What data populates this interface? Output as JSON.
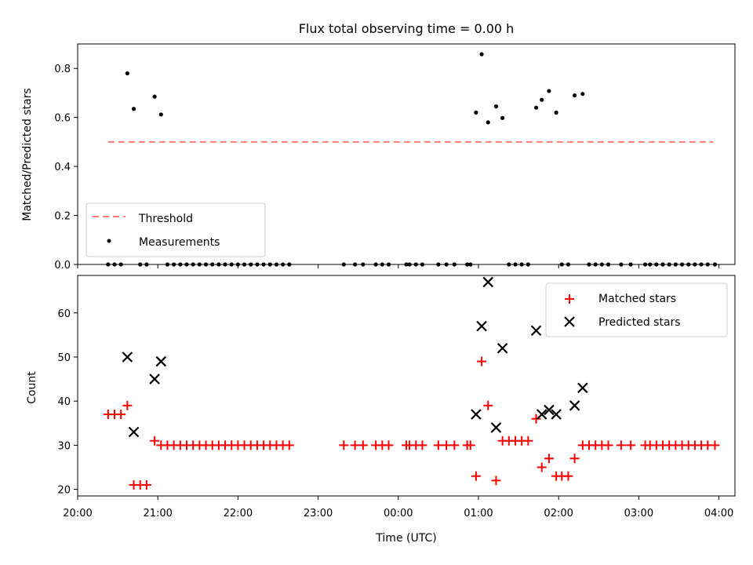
{
  "chart_data": [
    {
      "type": "scatter",
      "title": "Flux total observing time = 0.00 h",
      "xlabel": "",
      "ylabel": "Matched/Predicted stars",
      "xlim_hours": [
        20.0,
        28.2
      ],
      "ylim": [
        0,
        0.9
      ],
      "yticks": [
        0.0,
        0.2,
        0.4,
        0.6,
        0.8
      ],
      "ytick_labels": [
        "0.0",
        "0.2",
        "0.4",
        "0.6",
        "0.8"
      ],
      "threshold": {
        "name": "Threshold",
        "value": 0.5,
        "x_start": 20.38,
        "x_end": 27.93,
        "color": "#ff7b7b"
      },
      "series": [
        {
          "name": "Measurements",
          "color": "#000000",
          "x": [
            20.38,
            20.46,
            20.54,
            20.62,
            20.7,
            20.78,
            20.86,
            20.96,
            21.04,
            21.12,
            21.2,
            21.28,
            21.36,
            21.44,
            21.52,
            21.6,
            21.68,
            21.76,
            21.84,
            21.92,
            22.0,
            22.08,
            22.16,
            22.24,
            22.32,
            22.4,
            22.48,
            22.56,
            22.64,
            23.32,
            23.46,
            23.56,
            23.72,
            23.8,
            23.88,
            24.1,
            24.14,
            24.22,
            24.3,
            24.5,
            24.6,
            24.7,
            24.86,
            24.9,
            24.97,
            25.04,
            25.12,
            25.22,
            25.3,
            25.38,
            25.46,
            25.54,
            25.62,
            25.72,
            25.79,
            25.88,
            25.97,
            26.04,
            26.12,
            26.2,
            26.3,
            26.38,
            26.46,
            26.54,
            26.62,
            26.78,
            26.9,
            27.08,
            27.14,
            27.22,
            27.3,
            27.38,
            27.46,
            27.54,
            27.62,
            27.7,
            27.78,
            27.86,
            27.95
          ],
          "y": [
            0,
            0,
            0,
            0.78,
            0.635,
            0,
            0,
            0.685,
            0.612,
            0,
            0,
            0,
            0,
            0,
            0,
            0,
            0,
            0,
            0,
            0,
            0,
            0,
            0,
            0,
            0,
            0,
            0,
            0,
            0,
            0,
            0,
            0,
            0,
            0,
            0,
            0,
            0,
            0,
            0,
            0,
            0,
            0,
            0,
            0,
            0.62,
            0.858,
            0.58,
            0.645,
            0.598,
            0,
            0,
            0,
            0,
            0.64,
            0.672,
            0.708,
            0.62,
            0,
            0,
            0.69,
            0.696,
            0,
            0,
            0,
            0,
            0,
            0,
            0,
            0,
            0,
            0,
            0,
            0,
            0,
            0,
            0,
            0,
            0,
            0
          ]
        }
      ],
      "legend_placement": "lower-left",
      "grid": false
    },
    {
      "type": "scatter",
      "title": "",
      "xlabel": "Time (UTC)",
      "ylabel": "Count",
      "xlim_hours": [
        20.0,
        28.2
      ],
      "ylim": [
        18.5,
        68.5
      ],
      "yticks": [
        20,
        30,
        40,
        50,
        60
      ],
      "ytick_labels": [
        "20",
        "30",
        "40",
        "50",
        "60"
      ],
      "xticks_hours": [
        20,
        21,
        22,
        23,
        24,
        25,
        26,
        27,
        28
      ],
      "xtick_labels": [
        "20:00",
        "21:00",
        "22:00",
        "23:00",
        "00:00",
        "01:00",
        "02:00",
        "03:00",
        "04:00"
      ],
      "series": [
        {
          "name": "Matched stars",
          "color": "#ff0000",
          "marker": "plus",
          "x": [
            20.38,
            20.46,
            20.54,
            20.62,
            20.7,
            20.78,
            20.86,
            20.96,
            21.04,
            21.12,
            21.2,
            21.28,
            21.36,
            21.44,
            21.52,
            21.6,
            21.68,
            21.76,
            21.84,
            21.92,
            22.0,
            22.08,
            22.16,
            22.24,
            22.32,
            22.4,
            22.48,
            22.56,
            22.64,
            23.32,
            23.46,
            23.56,
            23.72,
            23.8,
            23.88,
            24.1,
            24.14,
            24.22,
            24.3,
            24.5,
            24.6,
            24.7,
            24.86,
            24.9,
            24.97,
            25.04,
            25.12,
            25.22,
            25.3,
            25.38,
            25.46,
            25.54,
            25.62,
            25.72,
            25.79,
            25.88,
            25.97,
            26.04,
            26.12,
            26.2,
            26.3,
            26.38,
            26.46,
            26.54,
            26.62,
            26.78,
            26.9,
            27.08,
            27.14,
            27.22,
            27.3,
            27.38,
            27.46,
            27.54,
            27.62,
            27.7,
            27.78,
            27.86,
            27.95
          ],
          "y": [
            37,
            37,
            37,
            39,
            21,
            21,
            21,
            31,
            30,
            30,
            30,
            30,
            30,
            30,
            30,
            30,
            30,
            30,
            30,
            30,
            30,
            30,
            30,
            30,
            30,
            30,
            30,
            30,
            30,
            30,
            30,
            30,
            30,
            30,
            30,
            30,
            30,
            30,
            30,
            30,
            30,
            30,
            30,
            30,
            23,
            49,
            39,
            22,
            31,
            31,
            31,
            31,
            31,
            36,
            25,
            27,
            23,
            23,
            23,
            27,
            30,
            30,
            30,
            30,
            30,
            30,
            30,
            30,
            30,
            30,
            30,
            30,
            30,
            30,
            30,
            30,
            30,
            30,
            30
          ]
        },
        {
          "name": "Predicted stars",
          "color": "#000000",
          "marker": "x",
          "x": [
            20.62,
            20.7,
            20.96,
            21.04,
            24.97,
            25.04,
            25.12,
            25.22,
            25.3,
            25.72,
            25.79,
            25.88,
            25.97,
            26.2,
            26.3
          ],
          "y": [
            50,
            33,
            45,
            49,
            37,
            57,
            67,
            34,
            52,
            56,
            37,
            38,
            37,
            39,
            43
          ]
        }
      ],
      "legend_placement": "top-right",
      "grid": false
    }
  ]
}
